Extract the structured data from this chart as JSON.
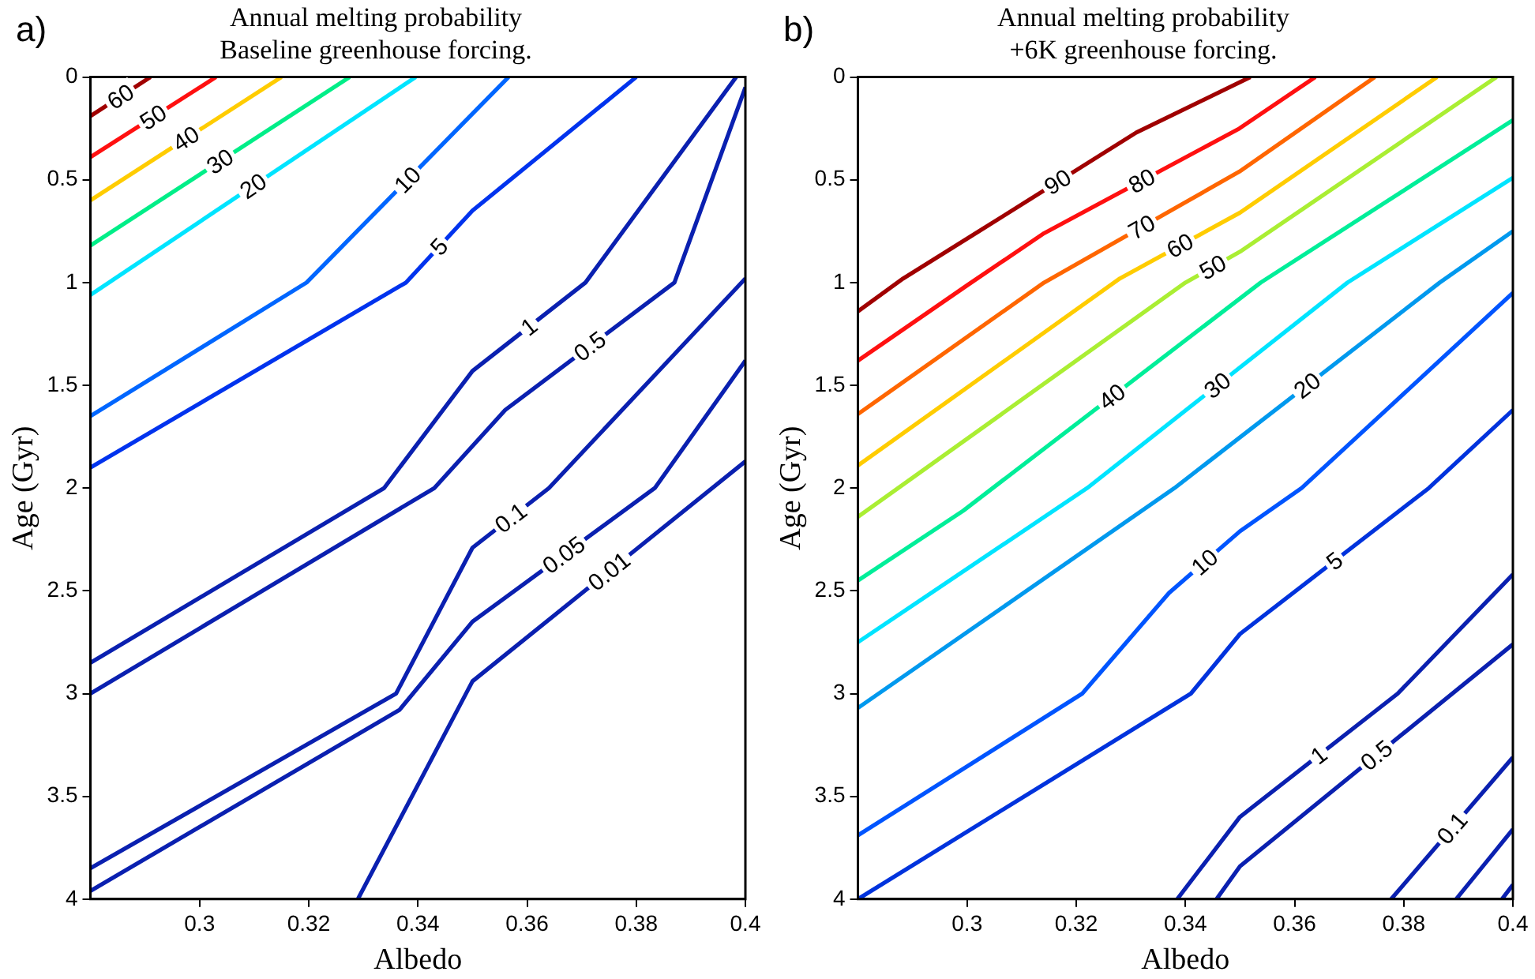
{
  "chart_data": [
    {
      "type": "line",
      "title": "Annual melting probability",
      "subtitle": "Baseline greenhouse forcing.",
      "xlabel": "Albedo",
      "ylabel": "Age (Gyr)",
      "annotations": [
        "a)"
      ],
      "xlim": [
        0.28,
        0.4
      ],
      "xticks": [
        0.3,
        0.32,
        0.34,
        0.36,
        0.38,
        0.4
      ],
      "ylim": [
        4,
        0
      ],
      "yticks": [
        0,
        0.5,
        1,
        1.5,
        2,
        2.5,
        3,
        3.5,
        4
      ],
      "grid": false,
      "legend": false,
      "marker": "none",
      "series": [
        {
          "name": "60",
          "color": "#a00000",
          "x": [
            0.28,
            0.291
          ],
          "values": [
            0.19,
            0
          ]
        },
        {
          "name": "50",
          "color": "#ff1010",
          "x": [
            0.28,
            0.303
          ],
          "values": [
            0.39,
            0
          ]
        },
        {
          "name": "40",
          "color": "#ffcc00",
          "x": [
            0.28,
            0.315
          ],
          "values": [
            0.6,
            0
          ]
        },
        {
          "name": "30",
          "color": "#00ee88",
          "x": [
            0.28,
            0.3275
          ],
          "values": [
            0.82,
            0
          ]
        },
        {
          "name": "20",
          "color": "#00e4ff",
          "x": [
            0.28,
            0.3396
          ],
          "values": [
            1.06,
            0
          ]
        },
        {
          "name": "10",
          "color": "#0066ff",
          "x": [
            0.28,
            0.3196,
            0.3566
          ],
          "values": [
            1.65,
            1.0,
            0
          ]
        },
        {
          "name": "5",
          "color": "#0033ee",
          "x": [
            0.28,
            0.3378,
            0.35,
            0.38
          ],
          "values": [
            1.9,
            1.0,
            0.65,
            0
          ]
        },
        {
          "name": "1",
          "color": "#0a20b0",
          "x": [
            0.28,
            0.3338,
            0.35,
            0.3707,
            0.3983
          ],
          "values": [
            2.85,
            2.0,
            1.43,
            1.0,
            0
          ]
        },
        {
          "name": "0.5",
          "color": "#0a20b0",
          "x": [
            0.28,
            0.343,
            0.356,
            0.387,
            0.4
          ],
          "values": [
            3.0,
            2.0,
            1.62,
            1.0,
            0.05
          ]
        },
        {
          "name": "0.1",
          "color": "#0a20b0",
          "x": [
            0.28,
            0.336,
            0.35,
            0.364,
            0.4
          ],
          "values": [
            3.85,
            3.0,
            2.29,
            2.0,
            0.98
          ]
        },
        {
          "name": "0.05",
          "color": "#0a20b0",
          "x": [
            0.28,
            0.3366,
            0.35,
            0.3834,
            0.4
          ],
          "values": [
            3.96,
            3.08,
            2.65,
            2.0,
            1.38
          ]
        },
        {
          "name": "0.01",
          "color": "#0a20b0",
          "x": [
            0.329,
            0.35,
            0.4
          ],
          "values": [
            4.0,
            2.94,
            1.87
          ]
        }
      ]
    },
    {
      "type": "line",
      "title": "Annual melting probability",
      "subtitle": "+6K greenhouse forcing.",
      "xlabel": "Albedo",
      "ylabel": "Age (Gyr)",
      "annotations": [
        "b)"
      ],
      "xlim": [
        0.28,
        0.4
      ],
      "xticks": [
        0.3,
        0.32,
        0.34,
        0.36,
        0.38,
        0.4
      ],
      "ylim": [
        4,
        0
      ],
      "yticks": [
        0,
        0.5,
        1,
        1.5,
        2,
        2.5,
        3,
        3.5,
        4
      ],
      "grid": false,
      "legend": false,
      "marker": "none",
      "series": [
        {
          "name": "90",
          "color": "#a00000",
          "x": [
            0.28,
            0.2883,
            0.3022,
            0.331,
            0.3519
          ],
          "values": [
            1.14,
            0.98,
            0.75,
            0.27,
            0
          ]
        },
        {
          "name": "80",
          "color": "#ff1010",
          "x": [
            0.28,
            0.3002,
            0.3141,
            0.3499,
            0.3638
          ],
          "values": [
            1.38,
            1.01,
            0.76,
            0.25,
            0
          ]
        },
        {
          "name": "70",
          "color": "#ff6600",
          "x": [
            0.28,
            0.3141,
            0.3499,
            0.3747
          ],
          "values": [
            1.64,
            1.0,
            0.46,
            0
          ]
        },
        {
          "name": "60",
          "color": "#ffcc00",
          "x": [
            0.28,
            0.328,
            0.35,
            0.3861
          ],
          "values": [
            1.89,
            0.98,
            0.66,
            0
          ]
        },
        {
          "name": "50",
          "color": "#aaee33",
          "x": [
            0.28,
            0.34,
            0.35,
            0.397
          ],
          "values": [
            2.14,
            1.0,
            0.85,
            0
          ]
        },
        {
          "name": "40",
          "color": "#00ee99",
          "x": [
            0.28,
            0.2993,
            0.3538,
            0.4
          ],
          "values": [
            2.45,
            2.11,
            1.0,
            0.21
          ]
        },
        {
          "name": "30",
          "color": "#00e4ff",
          "x": [
            0.28,
            0.322,
            0.3697,
            0.4
          ],
          "values": [
            2.75,
            2.0,
            1.0,
            0.49
          ]
        },
        {
          "name": "20",
          "color": "#0099ee",
          "x": [
            0.28,
            0.338,
            0.3866,
            0.4
          ],
          "values": [
            3.07,
            2.0,
            1.0,
            0.75
          ]
        },
        {
          "name": "10",
          "color": "#0055ff",
          "x": [
            0.28,
            0.3211,
            0.337,
            0.35,
            0.3613,
            0.4
          ],
          "values": [
            3.69,
            3.0,
            2.51,
            2.21,
            2.0,
            1.05
          ]
        },
        {
          "name": "5",
          "color": "#0033dd",
          "x": [
            0.28,
            0.341,
            0.35,
            0.3846,
            0.4
          ],
          "values": [
            4.0,
            3.0,
            2.71,
            2.0,
            1.62
          ]
        },
        {
          "name": "1",
          "color": "#0a20b0",
          "x": [
            0.3385,
            0.35,
            0.3789,
            0.4
          ],
          "values": [
            4.0,
            3.6,
            3.0,
            2.42
          ]
        },
        {
          "name": "0.5",
          "color": "#0a20b0",
          "x": [
            0.3457,
            0.35,
            0.4
          ],
          "values": [
            4.0,
            3.84,
            2.76
          ]
        },
        {
          "name": "0.1",
          "color": "#0a20b0",
          "x": [
            0.3777,
            0.4
          ],
          "values": [
            4.0,
            3.31
          ]
        },
        {
          "color": "#0a20b0",
          "x": [
            0.3896,
            0.4
          ],
          "values": [
            4.0,
            3.66
          ]
        },
        {
          "color": "#0a20b0",
          "x": [
            0.398,
            0.4
          ],
          "values": [
            4.0,
            3.93
          ]
        }
      ]
    }
  ]
}
